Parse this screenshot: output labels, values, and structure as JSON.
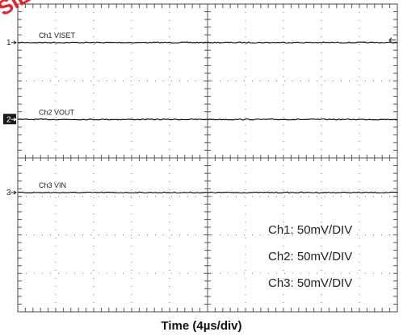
{
  "watermark": "SIL",
  "chart_data": {
    "type": "line",
    "title": "",
    "xlabel": "Time (4µs/div)",
    "ylabel": "",
    "grid": true,
    "x_divisions": 10,
    "y_divisions": 8,
    "series": [
      {
        "name": "Ch1 VISET",
        "marker": "1",
        "scale_label": "Ch1:  50mV/DIV",
        "color": "#111111",
        "level_div": 7.0
      },
      {
        "name": "Ch2 VOUT",
        "marker": "2",
        "scale_label": "Ch2:  50mV/DIV",
        "color": "#111111",
        "level_div": 5.0
      },
      {
        "name": "Ch3 VIN",
        "marker": "3",
        "scale_label": "Ch3:  50mV/DIV",
        "color": "#111111",
        "level_div": 3.1
      }
    ]
  }
}
